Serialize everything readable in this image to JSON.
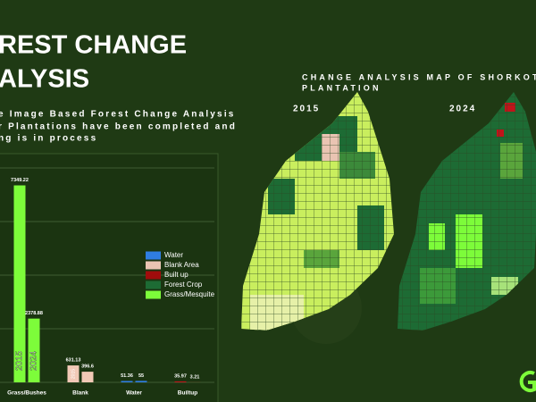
{
  "title_lines": [
    "REST CHANGE",
    "ALYSIS"
  ],
  "description_lines": [
    "e Image Based Forest Change Analysis",
    "r Plantations have been completed and",
    "ng is in process"
  ],
  "map_title_lines": [
    "CHANGE ANALYSIS MAP OF SHORKOT",
    "PLANTATION"
  ],
  "map_labels": [
    "2015",
    "2024"
  ],
  "chart_data": {
    "type": "bar",
    "categories": [
      "Grass/Bushes",
      "Blank",
      "Water",
      "Builtup"
    ],
    "series": [
      {
        "name": "2015",
        "values": [
          7349.22,
          631.13,
          51.36,
          35.97
        ]
      },
      {
        "name": "2024",
        "values": [
          2378.88,
          396.6,
          55,
          3.21
        ]
      }
    ],
    "category_colors": [
      "#7dfc3a",
      "#f2c9b6",
      "#2f7de1",
      "#c0141a"
    ],
    "ylim": [
      0,
      8000
    ],
    "yticks": [
      0,
      2000,
      4000,
      6000,
      8000
    ],
    "grid": true,
    "legend": [
      {
        "name": "Water",
        "color": "#2f7de1"
      },
      {
        "name": "Blank Area",
        "color": "#e9c4b2"
      },
      {
        "name": "Built up",
        "color": "#a00c0c"
      },
      {
        "name": "Forest Crop",
        "color": "#1d6b34"
      },
      {
        "name": "Grass/Mesquite",
        "color": "#7dfc3a"
      }
    ]
  }
}
